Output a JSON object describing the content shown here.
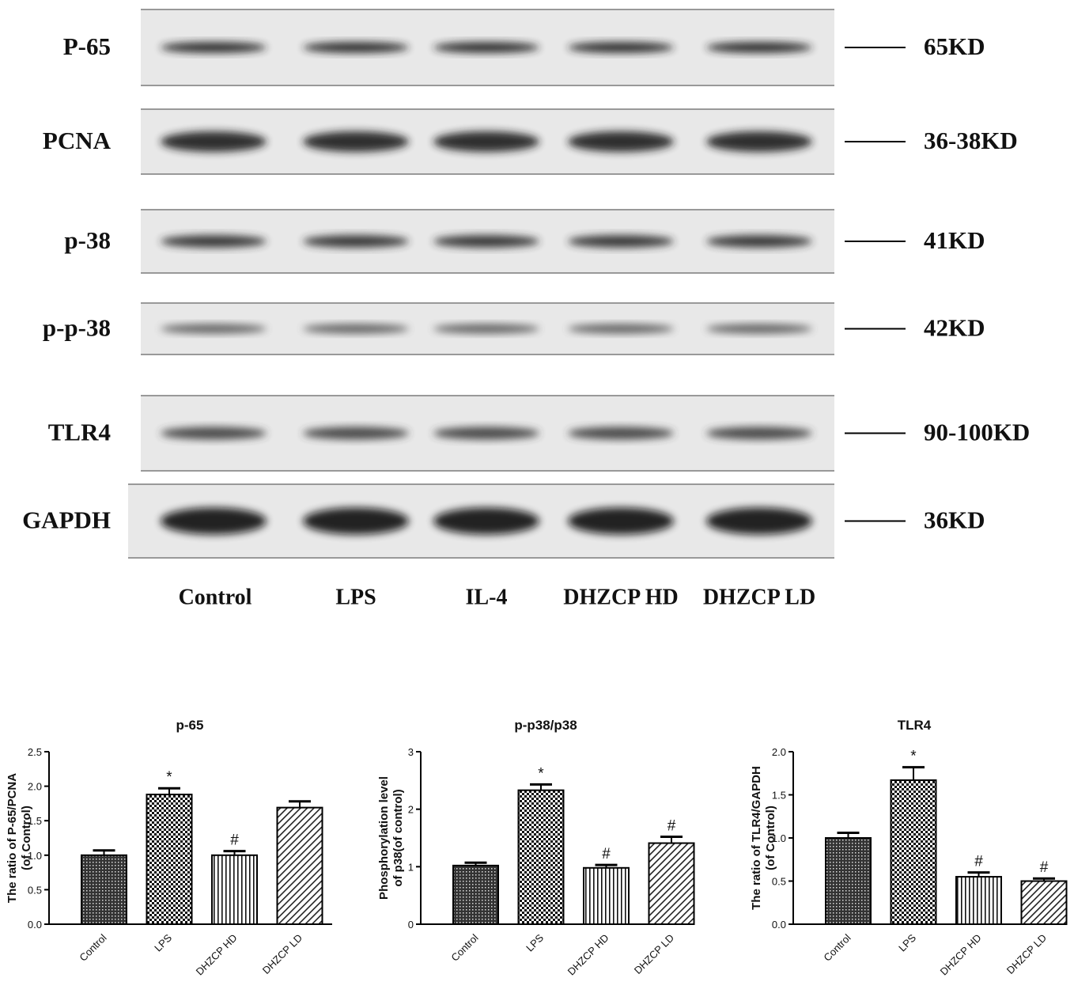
{
  "blot": {
    "rows": [
      {
        "label": "P-65",
        "size": "65KD"
      },
      {
        "label": "PCNA",
        "size": "36-38KD"
      },
      {
        "label": "p-38",
        "size": "41KD"
      },
      {
        "label": "p-p-38",
        "size": "42KD"
      },
      {
        "label": "TLR4",
        "size": "90-100KD"
      },
      {
        "label": "GAPDH",
        "size": "36KD"
      }
    ],
    "lanes": [
      "Control",
      "LPS",
      "IL-4",
      "DHZCP HD",
      "DHZCP LD"
    ]
  },
  "chart_data": [
    {
      "type": "bar",
      "title": "p-65",
      "ylabel": [
        "The ratio of P-65/PCNA",
        "(of Control)"
      ],
      "categories": [
        "Control",
        "LPS",
        "DHZCP HD",
        "DHZCP LD"
      ],
      "values": [
        1.0,
        1.88,
        1.0,
        1.69
      ],
      "errors": [
        0.07,
        0.09,
        0.06,
        0.09
      ],
      "markers": [
        null,
        "*",
        "#",
        null
      ],
      "patterns": [
        "dots",
        "checker",
        "vertical",
        "diagonal"
      ],
      "ylim": [
        0,
        2.5
      ],
      "yticks": [
        {
          "value": 0,
          "label": "0.0"
        },
        0.5,
        {
          "value": 1,
          "label": "1.0"
        },
        1.5,
        {
          "value": 2,
          "label": "2.0"
        },
        2.5
      ]
    },
    {
      "type": "bar",
      "title": "p-p38/p38",
      "ylabel": [
        "Phosphorylation level",
        "of p38(of control)"
      ],
      "categories": [
        "Control",
        "LPS",
        "DHZCP HD",
        "DHZCP LD"
      ],
      "values": [
        1.02,
        2.33,
        0.98,
        1.41
      ],
      "errors": [
        0.05,
        0.1,
        0.05,
        0.11
      ],
      "markers": [
        null,
        "*",
        "#",
        "#"
      ],
      "patterns": [
        "dots",
        "checker",
        "vertical",
        "diagonal"
      ],
      "ylim": [
        0,
        3
      ],
      "yticks": [
        0,
        1,
        2,
        3
      ]
    },
    {
      "type": "bar",
      "title": "TLR4",
      "ylabel": [
        "The ratio of TLR4/GAPDH",
        "(of Control)"
      ],
      "categories": [
        "Control",
        "LPS",
        "DHZCP HD",
        "DHZCP LD"
      ],
      "values": [
        1.0,
        1.67,
        0.55,
        0.5
      ],
      "errors": [
        0.06,
        0.15,
        0.05,
        0.03
      ],
      "markers": [
        null,
        "*",
        "#",
        "#"
      ],
      "patterns": [
        "dots",
        "checker",
        "vertical",
        "diagonal"
      ],
      "ylim": [
        0,
        2
      ],
      "yticks": [
        {
          "value": 0,
          "label": "0.0"
        },
        0.5,
        {
          "value": 1,
          "label": "1.0"
        },
        1.5,
        {
          "value": 2,
          "label": "2.0"
        }
      ]
    }
  ]
}
